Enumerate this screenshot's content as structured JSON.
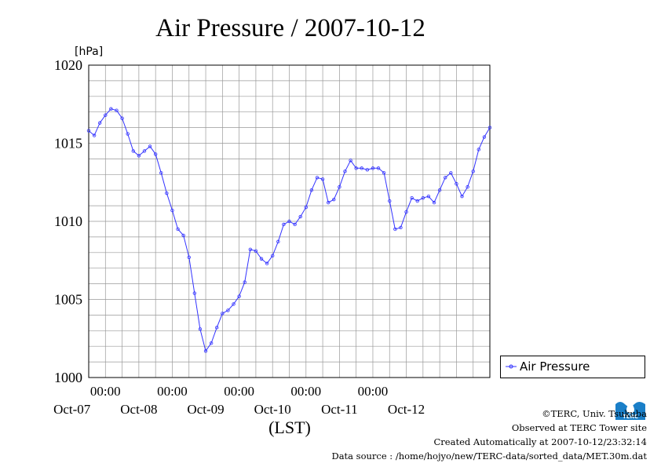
{
  "chart_data": {
    "type": "line",
    "title": "Air Pressure / 2007-10-12",
    "ylabel_unit": "[hPa]",
    "xlabel": "(LST)",
    "ylim": [
      1000,
      1020
    ],
    "yticks": [
      "1000",
      "1005",
      "1010",
      "1015",
      "1020"
    ],
    "xticks_time": [
      "00:00",
      "00:00",
      "00:00",
      "00:00",
      "00:00"
    ],
    "xticks_date": [
      "Oct-07",
      "Oct-08",
      "Oct-09",
      "Oct-10",
      "Oct-11",
      "Oct-12"
    ],
    "x_unit": "hours since 2007-10-06 18:00",
    "grid": true,
    "legend_position": "right",
    "series": [
      {
        "name": "Air Pressure",
        "color": "#3333ff",
        "x": [
          0,
          2,
          4,
          6,
          8,
          10,
          12,
          14,
          16,
          18,
          20,
          22,
          24,
          26,
          28,
          30,
          32,
          34,
          36,
          38,
          40,
          42,
          44,
          46,
          48,
          50,
          52,
          54,
          56,
          58,
          60,
          62,
          64,
          66,
          68,
          70,
          72,
          74,
          76,
          78,
          80,
          82,
          84,
          86,
          88,
          90,
          92,
          94,
          96,
          98,
          100,
          102,
          104,
          106,
          108,
          110,
          112,
          114,
          116,
          118,
          120,
          122,
          124,
          126,
          128,
          130,
          132,
          134,
          136,
          138,
          140,
          142,
          144
        ],
        "values": [
          1015.8,
          1015.5,
          1016.3,
          1016.8,
          1017.2,
          1017.1,
          1016.6,
          1015.6,
          1014.5,
          1014.2,
          1014.5,
          1014.8,
          1014.3,
          1013.1,
          1011.8,
          1010.7,
          1009.5,
          1009.1,
          1007.7,
          1005.4,
          1003.1,
          1001.7,
          1002.2,
          1003.2,
          1004.1,
          1004.3,
          1004.7,
          1005.2,
          1006.1,
          1008.2,
          1008.1,
          1007.6,
          1007.3,
          1007.8,
          1008.7,
          1009.8,
          1010.0,
          1009.8,
          1010.3,
          1010.9,
          1012.0,
          1012.8,
          1012.7,
          1011.2,
          1011.4,
          1012.2,
          1013.2,
          1013.9,
          1013.4,
          1013.4,
          1013.3,
          1013.4,
          1013.4,
          1013.1,
          1011.3,
          1009.5,
          1009.6,
          1010.6,
          1011.5,
          1011.3,
          1011.5,
          1011.6,
          1011.2,
          1012.0,
          1012.8,
          1013.1,
          1012.4,
          1011.6,
          1012.2,
          1013.2,
          1014.6,
          1015.4,
          1016.0
        ]
      }
    ]
  },
  "footer": {
    "copyright": "©TERC, Univ. Tsukuba",
    "observed": "Observed at TERC Tower site",
    "created": "Created Automatically at 2007-10-12/23:32:14",
    "source": "Data source : /home/hojyo/new/TERC-data/sorted_data/MET.30m.dat"
  },
  "logo": {
    "text": "TERC",
    "color": "#1a7fc8"
  }
}
